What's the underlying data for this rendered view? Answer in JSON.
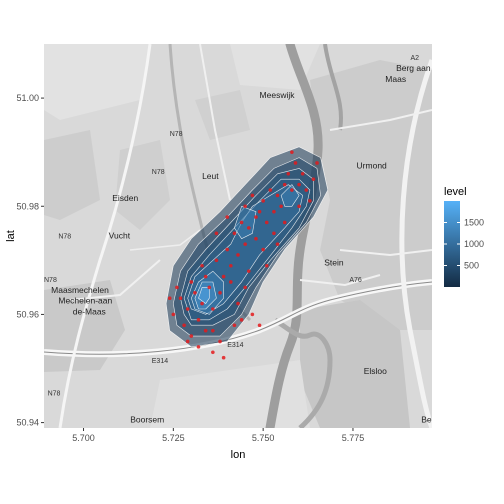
{
  "chart_data": {
    "type": "density-map",
    "xlabel": "lon",
    "ylabel": "lat",
    "xlim": [
      5.689,
      5.797
    ],
    "ylim": [
      50.939,
      51.01
    ],
    "x_ticks": [
      5.7,
      5.725,
      5.75,
      5.775
    ],
    "x_tick_labels": [
      "5.700",
      "5.725",
      "5.750",
      "5.775"
    ],
    "y_ticks": [
      50.94,
      50.96,
      50.98,
      51.0
    ],
    "y_tick_labels": [
      "50.94",
      "50.96",
      "50.98",
      "51.00"
    ],
    "legend": {
      "title": "level",
      "position": "right",
      "range": [
        0,
        2000
      ],
      "ticks": [
        500,
        1000,
        1500
      ],
      "tick_labels": [
        "500",
        "1000",
        "1500"
      ],
      "color_low": "#132b43",
      "color_high": "#56b1f7"
    },
    "density_levels": [
      {
        "level": 200,
        "rings": [
          [
            5.723,
            50.962
          ],
          [
            5.725,
            50.969
          ],
          [
            5.73,
            50.974
          ],
          [
            5.738,
            50.979
          ],
          [
            5.745,
            50.984
          ],
          [
            5.752,
            50.989
          ],
          [
            5.76,
            50.991
          ],
          [
            5.766,
            50.989
          ],
          [
            5.768,
            50.983
          ],
          [
            5.764,
            50.978
          ],
          [
            5.756,
            50.972
          ],
          [
            5.75,
            50.966
          ],
          [
            5.746,
            50.96
          ],
          [
            5.74,
            50.955
          ],
          [
            5.73,
            50.954
          ],
          [
            5.724,
            50.957
          ]
        ]
      },
      {
        "level": 400,
        "rings": [
          [
            5.725,
            50.962
          ],
          [
            5.727,
            50.968
          ],
          [
            5.732,
            50.973
          ],
          [
            5.74,
            50.978
          ],
          [
            5.747,
            50.983
          ],
          [
            5.753,
            50.987
          ],
          [
            5.76,
            50.989
          ],
          [
            5.765,
            50.987
          ],
          [
            5.766,
            50.982
          ],
          [
            5.762,
            50.977
          ],
          [
            5.754,
            50.971
          ],
          [
            5.748,
            50.965
          ],
          [
            5.744,
            50.96
          ],
          [
            5.738,
            50.956
          ],
          [
            5.73,
            50.956
          ],
          [
            5.726,
            50.958
          ]
        ]
      },
      {
        "level": 600,
        "rings": [
          [
            5.727,
            50.963
          ],
          [
            5.729,
            50.968
          ],
          [
            5.734,
            50.972
          ],
          [
            5.741,
            50.977
          ],
          [
            5.748,
            50.982
          ],
          [
            5.754,
            50.986
          ],
          [
            5.76,
            50.987
          ],
          [
            5.764,
            50.985
          ],
          [
            5.764,
            50.981
          ],
          [
            5.76,
            50.976
          ],
          [
            5.752,
            50.97
          ],
          [
            5.746,
            50.965
          ],
          [
            5.742,
            50.96
          ],
          [
            5.736,
            50.958
          ],
          [
            5.73,
            50.958
          ],
          [
            5.728,
            50.96
          ]
        ]
      },
      {
        "level": 800,
        "rings": [
          [
            5.728,
            50.963
          ],
          [
            5.73,
            50.967
          ],
          [
            5.735,
            50.971
          ],
          [
            5.742,
            50.976
          ],
          [
            5.749,
            50.981
          ],
          [
            5.755,
            50.985
          ],
          [
            5.76,
            50.985
          ],
          [
            5.763,
            50.983
          ],
          [
            5.762,
            50.98
          ],
          [
            5.758,
            50.976
          ],
          [
            5.751,
            50.97
          ],
          [
            5.745,
            50.965
          ],
          [
            5.74,
            50.961
          ],
          [
            5.735,
            50.959
          ],
          [
            5.73,
            50.959
          ],
          [
            5.729,
            50.961
          ]
        ]
      },
      {
        "level": 1000,
        "rings": [
          [
            5.729,
            50.963
          ],
          [
            5.731,
            50.967
          ],
          [
            5.736,
            50.97
          ],
          [
            5.741,
            50.973
          ],
          [
            5.744,
            50.977
          ],
          [
            5.747,
            50.98
          ],
          [
            5.752,
            50.982
          ],
          [
            5.757,
            50.984
          ],
          [
            5.761,
            50.982
          ],
          [
            5.76,
            50.979
          ],
          [
            5.756,
            50.976
          ],
          [
            5.749,
            50.971
          ],
          [
            5.744,
            50.966
          ],
          [
            5.739,
            50.962
          ],
          [
            5.734,
            50.96
          ],
          [
            5.73,
            50.961
          ]
        ]
      },
      {
        "level": 1200,
        "rings": [
          [
            5.73,
            50.963
          ],
          [
            5.732,
            50.966
          ],
          [
            5.736,
            50.968
          ],
          [
            5.739,
            50.966
          ],
          [
            5.739,
            50.963
          ],
          [
            5.735,
            50.96
          ],
          [
            5.731,
            50.961
          ]
        ]
      },
      {
        "level": 1200,
        "rings": [
          [
            5.742,
            50.976
          ],
          [
            5.744,
            50.98
          ],
          [
            5.748,
            50.979
          ],
          [
            5.747,
            50.975
          ],
          [
            5.744,
            50.974
          ]
        ]
      },
      {
        "level": 1200,
        "rings": [
          [
            5.755,
            50.982
          ],
          [
            5.758,
            50.984
          ],
          [
            5.76,
            50.982
          ],
          [
            5.758,
            50.98
          ],
          [
            5.756,
            50.98
          ]
        ]
      },
      {
        "level": 1500,
        "rings": [
          [
            5.731,
            50.963
          ],
          [
            5.733,
            50.966
          ],
          [
            5.736,
            50.966
          ],
          [
            5.737,
            50.963
          ],
          [
            5.734,
            50.961
          ],
          [
            5.732,
            50.961
          ]
        ]
      },
      {
        "level": 1800,
        "rings": [
          [
            5.732,
            50.963
          ],
          [
            5.733,
            50.965
          ],
          [
            5.735,
            50.965
          ],
          [
            5.735,
            50.963
          ],
          [
            5.734,
            50.962
          ]
        ]
      }
    ],
    "points": [
      [
        5.727,
        50.963
      ],
      [
        5.729,
        50.961
      ],
      [
        5.731,
        50.964
      ],
      [
        5.733,
        50.962
      ],
      [
        5.73,
        50.966
      ],
      [
        5.735,
        50.965
      ],
      [
        5.728,
        50.958
      ],
      [
        5.732,
        50.959
      ],
      [
        5.736,
        50.961
      ],
      [
        5.738,
        50.964
      ],
      [
        5.726,
        50.965
      ],
      [
        5.734,
        50.967
      ],
      [
        5.739,
        50.967
      ],
      [
        5.741,
        50.969
      ],
      [
        5.737,
        50.97
      ],
      [
        5.733,
        50.969
      ],
      [
        5.743,
        50.971
      ],
      [
        5.745,
        50.973
      ],
      [
        5.742,
        50.975
      ],
      [
        5.74,
        50.972
      ],
      [
        5.744,
        50.977
      ],
      [
        5.746,
        50.976
      ],
      [
        5.748,
        50.978
      ],
      [
        5.745,
        50.98
      ],
      [
        5.747,
        50.982
      ],
      [
        5.749,
        50.979
      ],
      [
        5.751,
        50.977
      ],
      [
        5.753,
        50.979
      ],
      [
        5.75,
        50.981
      ],
      [
        5.752,
        50.983
      ],
      [
        5.754,
        50.982
      ],
      [
        5.756,
        50.984
      ],
      [
        5.758,
        50.983
      ],
      [
        5.757,
        50.986
      ],
      [
        5.759,
        50.988
      ],
      [
        5.761,
        50.986
      ],
      [
        5.76,
        50.984
      ],
      [
        5.762,
        50.983
      ],
      [
        5.764,
        50.985
      ],
      [
        5.763,
        50.981
      ],
      [
        5.755,
        50.98
      ],
      [
        5.748,
        50.974
      ],
      [
        5.741,
        50.966
      ],
      [
        5.736,
        50.957
      ],
      [
        5.73,
        50.956
      ],
      [
        5.725,
        50.96
      ],
      [
        5.743,
        50.962
      ],
      [
        5.746,
        50.968
      ],
      [
        5.75,
        50.972
      ],
      [
        5.753,
        50.975
      ],
      [
        5.738,
        50.955
      ],
      [
        5.742,
        50.958
      ],
      [
        5.734,
        50.957
      ],
      [
        5.747,
        50.96
      ],
      [
        5.749,
        50.958
      ],
      [
        5.744,
        50.959
      ],
      [
        5.74,
        50.978
      ],
      [
        5.737,
        50.975
      ],
      [
        5.758,
        50.99
      ],
      [
        5.765,
        50.988
      ],
      [
        5.732,
        50.954
      ],
      [
        5.736,
        50.953
      ],
      [
        5.739,
        50.952
      ],
      [
        5.729,
        50.955
      ],
      [
        5.724,
        50.963
      ],
      [
        5.745,
        50.965
      ],
      [
        5.751,
        50.969
      ],
      [
        5.754,
        50.973
      ],
      [
        5.756,
        50.977
      ],
      [
        5.76,
        50.98
      ]
    ]
  },
  "map": {
    "labels": [
      {
        "text": "Meeswijk",
        "lon": 5.749,
        "lat": 51.0
      },
      {
        "text": "Berg aan de",
        "lon": 5.787,
        "lat": 51.005
      },
      {
        "text": "Maas",
        "lon": 5.784,
        "lat": 51.003
      },
      {
        "text": "Leut",
        "lon": 5.733,
        "lat": 50.985
      },
      {
        "text": "Urmond",
        "lon": 5.776,
        "lat": 50.987
      },
      {
        "text": "Eisden",
        "lon": 5.708,
        "lat": 50.981
      },
      {
        "text": "Vucht",
        "lon": 5.707,
        "lat": 50.974
      },
      {
        "text": "Stein",
        "lon": 5.767,
        "lat": 50.969
      },
      {
        "text": "Maasmechelen",
        "lon": 5.691,
        "lat": 50.964
      },
      {
        "text": "Mechelen-aan",
        "lon": 5.693,
        "lat": 50.962
      },
      {
        "text": "de-Maas",
        "lon": 5.697,
        "lat": 50.96
      },
      {
        "text": "Elsloo",
        "lon": 5.778,
        "lat": 50.949
      },
      {
        "text": "Boorsem",
        "lon": 5.713,
        "lat": 50.94
      },
      {
        "text": "Beek",
        "lon": 5.794,
        "lat": 50.94
      },
      {
        "text": "N78",
        "lon": 5.724,
        "lat": 50.993
      },
      {
        "text": "N78",
        "lon": 5.719,
        "lat": 50.986
      },
      {
        "text": "N78",
        "lon": 5.693,
        "lat": 50.974
      },
      {
        "text": "N78",
        "lon": 5.689,
        "lat": 50.966
      },
      {
        "text": "N78",
        "lon": 5.69,
        "lat": 50.945
      },
      {
        "text": "E314",
        "lon": 5.74,
        "lat": 50.954
      },
      {
        "text": "E314",
        "lon": 5.719,
        "lat": 50.951
      },
      {
        "text": "A76",
        "lon": 5.774,
        "lat": 50.966
      },
      {
        "text": "A2",
        "lon": 5.791,
        "lat": 51.007
      }
    ]
  }
}
